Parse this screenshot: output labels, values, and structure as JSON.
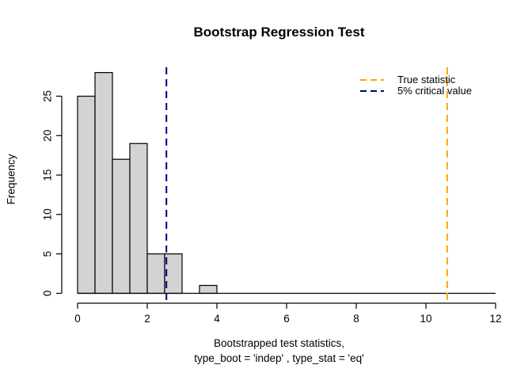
{
  "title": "Bootstrap Regression Test",
  "colors": {
    "background": "#FFFFFF",
    "axis": "#000000",
    "text": "#000000",
    "bar_fill": "#D3D3D3",
    "bar_border": "#000000",
    "true_statistic_line": "#FFA500",
    "critical_value_line": "#000080"
  },
  "legend": {
    "items": [
      {
        "label": "True statistic",
        "color": "#FFA500"
      },
      {
        "label": "5% critical value",
        "color": "#000080"
      }
    ]
  },
  "chart_data": {
    "type": "bar",
    "subtype": "histogram",
    "title": "Bootstrap Regression Test",
    "xlabel_line1": "Bootstrapped test statistics,",
    "xlabel_line2": "type_boot = 'indep' , type_stat = 'eq'",
    "ylabel": "Frequency",
    "bin_edges": [
      0,
      0.5,
      1,
      1.5,
      2,
      2.5,
      3,
      3.5,
      4
    ],
    "frequencies": [
      25,
      28,
      17,
      19,
      5,
      5,
      0,
      1
    ],
    "xlim": [
      0,
      12
    ],
    "ylim": [
      0,
      28
    ],
    "x_ticks": [
      0,
      2,
      4,
      6,
      8,
      10,
      12
    ],
    "y_ticks": [
      0,
      5,
      10,
      15,
      20,
      25
    ],
    "grid": false,
    "legend_position": "topright",
    "vlines": [
      {
        "name": "true-statistic-line",
        "x": 10.61,
        "color": "#FFA500",
        "style": "dashed",
        "label": "True statistic"
      },
      {
        "name": "critical-value-line",
        "x": 2.55,
        "color": "#000080",
        "style": "dashed",
        "label": "5% critical value"
      }
    ]
  }
}
